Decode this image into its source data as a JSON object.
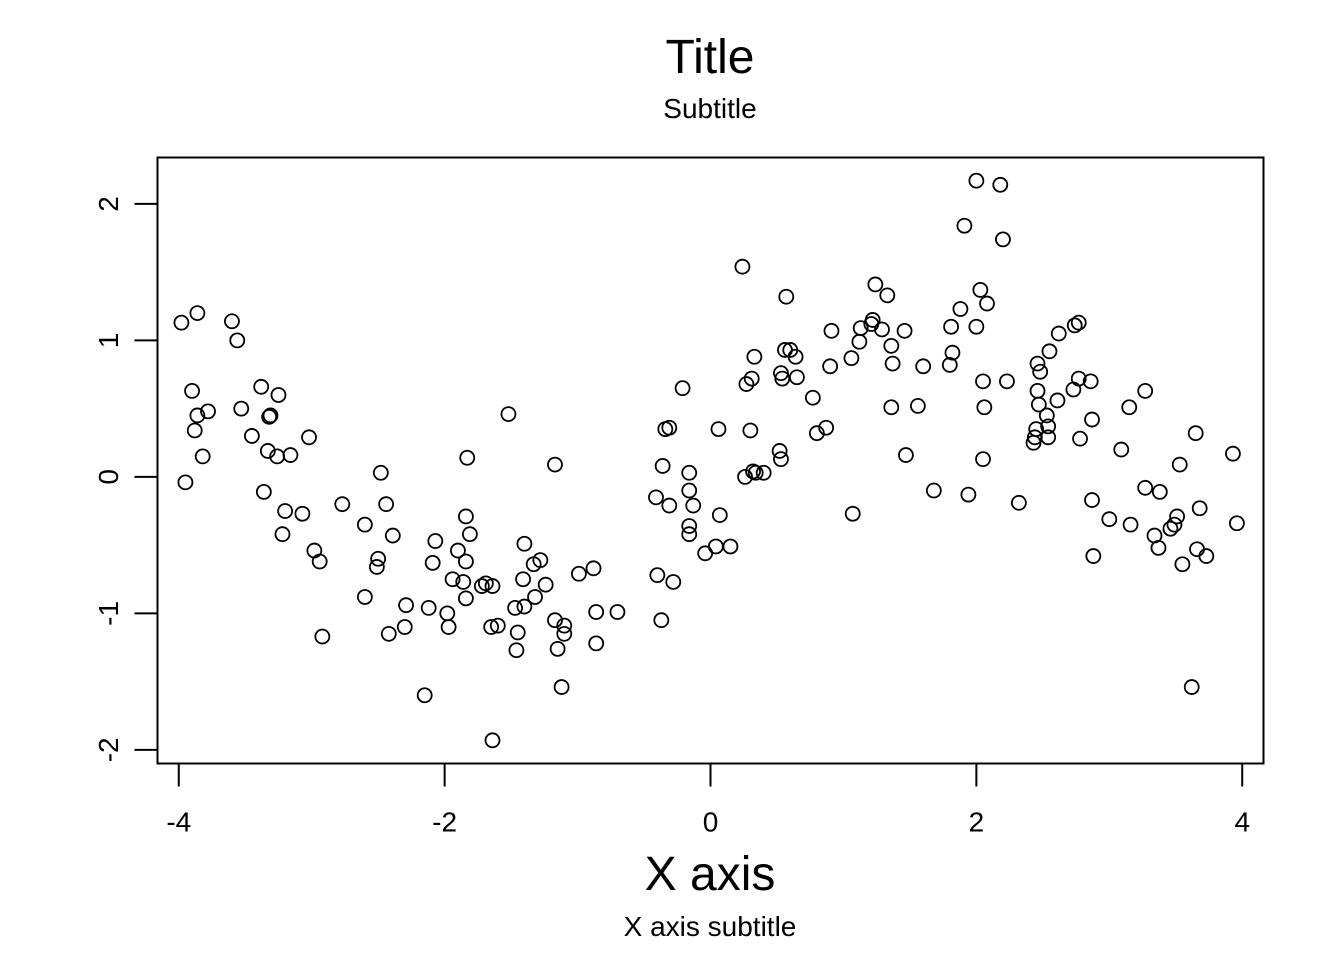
{
  "chart_data": {
    "type": "scatter",
    "title": "Title",
    "subtitle": "Subtitle",
    "xlabel": "X axis",
    "xlabel_subtitle": "X axis subtitle",
    "ylabel": "",
    "xlim": [
      -4.16,
      4.16
    ],
    "ylim": [
      -2.1,
      2.34
    ],
    "xticks": [
      -4,
      -2,
      0,
      2,
      4
    ],
    "yticks": [
      -2,
      -1,
      0,
      1,
      2
    ],
    "xtick_labels": [
      "-4",
      "-2",
      "0",
      "2",
      "4"
    ],
    "ytick_labels": [
      "-2",
      "-1",
      "0",
      "1",
      "2"
    ],
    "grid": false,
    "legend": "none",
    "marker": "open-circle",
    "colors": {
      "points": "#000000",
      "axes": "#000000",
      "background": "#ffffff"
    },
    "points": [
      [
        -3.98,
        1.13
      ],
      [
        -3.86,
        1.2
      ],
      [
        -3.6,
        1.14
      ],
      [
        -3.56,
        1.0
      ],
      [
        -3.9,
        0.63
      ],
      [
        -3.86,
        0.45
      ],
      [
        -3.78,
        0.48
      ],
      [
        -3.88,
        0.34
      ],
      [
        -3.82,
        0.15
      ],
      [
        -3.95,
        -0.04
      ],
      [
        -3.53,
        0.5
      ],
      [
        -3.45,
        0.3
      ],
      [
        -3.38,
        0.66
      ],
      [
        -3.32,
        0.44
      ],
      [
        -3.31,
        0.45
      ],
      [
        -3.25,
        0.6
      ],
      [
        -3.33,
        0.19
      ],
      [
        -3.26,
        0.15
      ],
      [
        -3.16,
        0.16
      ],
      [
        -3.36,
        -0.11
      ],
      [
        -3.2,
        -0.25
      ],
      [
        -3.07,
        -0.27
      ],
      [
        -3.22,
        -0.42
      ],
      [
        -3.02,
        0.29
      ],
      [
        -2.98,
        -0.54
      ],
      [
        -2.94,
        -0.62
      ],
      [
        -2.92,
        -1.17
      ],
      [
        -2.77,
        -0.2
      ],
      [
        -2.6,
        -0.35
      ],
      [
        -2.6,
        -0.88
      ],
      [
        -2.48,
        0.03
      ],
      [
        -2.44,
        -0.2
      ],
      [
        -2.5,
        -0.6
      ],
      [
        -2.51,
        -0.66
      ],
      [
        -2.39,
        -0.43
      ],
      [
        -2.42,
        -1.15
      ],
      [
        -2.3,
        -1.1
      ],
      [
        -2.29,
        -0.94
      ],
      [
        -2.15,
        -1.6
      ],
      [
        -2.12,
        -0.96
      ],
      [
        -2.09,
        -0.63
      ],
      [
        -2.07,
        -0.47
      ],
      [
        -1.98,
        -1.0
      ],
      [
        -1.97,
        -1.1
      ],
      [
        -1.94,
        -0.75
      ],
      [
        -1.9,
        -0.54
      ],
      [
        -1.86,
        -0.77
      ],
      [
        -1.83,
        0.14
      ],
      [
        -1.84,
        -0.29
      ],
      [
        -1.81,
        -0.42
      ],
      [
        -1.84,
        -0.62
      ],
      [
        -1.84,
        -0.89
      ],
      [
        -1.72,
        -0.8
      ],
      [
        -1.69,
        -0.78
      ],
      [
        -1.64,
        -0.8
      ],
      [
        -1.65,
        -1.1
      ],
      [
        -1.6,
        -1.09
      ],
      [
        -1.64,
        -1.93
      ],
      [
        -1.52,
        0.46
      ],
      [
        -1.47,
        -0.96
      ],
      [
        -1.45,
        -1.14
      ],
      [
        -1.46,
        -1.27
      ],
      [
        -1.41,
        -0.75
      ],
      [
        -1.4,
        -0.49
      ],
      [
        -1.4,
        -0.95
      ],
      [
        -1.33,
        -0.64
      ],
      [
        -1.32,
        -0.88
      ],
      [
        -1.28,
        -0.61
      ],
      [
        -1.24,
        -0.79
      ],
      [
        -1.17,
        -1.05
      ],
      [
        -1.15,
        -1.26
      ],
      [
        -1.12,
        -1.54
      ],
      [
        -1.1,
        -1.09
      ],
      [
        -1.1,
        -1.15
      ],
      [
        -1.17,
        0.09
      ],
      [
        -0.99,
        -0.71
      ],
      [
        -0.88,
        -0.67
      ],
      [
        -0.86,
        -0.99
      ],
      [
        -0.86,
        -1.22
      ],
      [
        -0.7,
        -0.99
      ],
      [
        -0.41,
        -0.15
      ],
      [
        -0.4,
        -0.72
      ],
      [
        -0.37,
        -1.05
      ],
      [
        -0.36,
        0.08
      ],
      [
        -0.34,
        0.35
      ],
      [
        -0.31,
        0.36
      ],
      [
        -0.31,
        -0.21
      ],
      [
        -0.28,
        -0.77
      ],
      [
        -0.21,
        0.65
      ],
      [
        -0.16,
        0.03
      ],
      [
        -0.16,
        -0.1
      ],
      [
        -0.16,
        -0.36
      ],
      [
        -0.16,
        -0.42
      ],
      [
        -0.13,
        -0.21
      ],
      [
        -0.04,
        -0.56
      ],
      [
        0.04,
        -0.51
      ],
      [
        0.06,
        0.35
      ],
      [
        0.07,
        -0.28
      ],
      [
        0.15,
        -0.51
      ],
      [
        0.24,
        1.54
      ],
      [
        0.26,
        0.0
      ],
      [
        0.27,
        0.68
      ],
      [
        0.3,
        0.34
      ],
      [
        0.31,
        0.72
      ],
      [
        0.32,
        0.04
      ],
      [
        0.33,
        0.88
      ],
      [
        0.34,
        0.03
      ],
      [
        0.4,
        0.03
      ],
      [
        0.52,
        0.19
      ],
      [
        0.53,
        0.13
      ],
      [
        0.53,
        0.76
      ],
      [
        0.54,
        0.72
      ],
      [
        0.56,
        0.93
      ],
      [
        0.57,
        1.32
      ],
      [
        0.6,
        0.93
      ],
      [
        0.64,
        0.88
      ],
      [
        0.65,
        0.73
      ],
      [
        0.77,
        0.58
      ],
      [
        0.8,
        0.32
      ],
      [
        0.87,
        0.36
      ],
      [
        0.9,
        0.81
      ],
      [
        0.91,
        1.07
      ],
      [
        1.06,
        0.87
      ],
      [
        1.07,
        -0.27
      ],
      [
        1.12,
        0.99
      ],
      [
        1.13,
        1.09
      ],
      [
        1.21,
        1.12
      ],
      [
        1.22,
        1.15
      ],
      [
        1.24,
        1.41
      ],
      [
        1.29,
        1.08
      ],
      [
        1.33,
        1.33
      ],
      [
        1.36,
        0.96
      ],
      [
        1.37,
        0.83
      ],
      [
        1.36,
        0.51
      ],
      [
        1.46,
        1.07
      ],
      [
        1.47,
        0.16
      ],
      [
        1.56,
        0.52
      ],
      [
        1.6,
        0.81
      ],
      [
        1.68,
        -0.1
      ],
      [
        1.8,
        0.82
      ],
      [
        1.81,
        1.1
      ],
      [
        1.82,
        0.91
      ],
      [
        1.88,
        1.23
      ],
      [
        1.91,
        1.84
      ],
      [
        1.94,
        -0.13
      ],
      [
        2.0,
        2.17
      ],
      [
        2.0,
        1.1
      ],
      [
        2.03,
        1.37
      ],
      [
        2.05,
        0.7
      ],
      [
        2.06,
        0.51
      ],
      [
        2.05,
        0.13
      ],
      [
        2.08,
        1.27
      ],
      [
        2.18,
        2.14
      ],
      [
        2.2,
        1.74
      ],
      [
        2.23,
        0.7
      ],
      [
        2.32,
        -0.19
      ],
      [
        2.43,
        0.25
      ],
      [
        2.44,
        0.29
      ],
      [
        2.45,
        0.35
      ],
      [
        2.46,
        0.83
      ],
      [
        2.46,
        0.63
      ],
      [
        2.47,
        0.53
      ],
      [
        2.48,
        0.77
      ],
      [
        2.53,
        0.45
      ],
      [
        2.54,
        0.37
      ],
      [
        2.54,
        0.29
      ],
      [
        2.55,
        0.92
      ],
      [
        2.61,
        0.56
      ],
      [
        2.62,
        1.05
      ],
      [
        2.73,
        0.64
      ],
      [
        2.74,
        1.11
      ],
      [
        2.77,
        1.13
      ],
      [
        2.77,
        0.72
      ],
      [
        2.78,
        0.28
      ],
      [
        2.86,
        0.7
      ],
      [
        2.87,
        0.42
      ],
      [
        2.87,
        -0.17
      ],
      [
        2.88,
        -0.58
      ],
      [
        3.0,
        -0.31
      ],
      [
        3.09,
        0.2
      ],
      [
        3.15,
        0.51
      ],
      [
        3.16,
        -0.35
      ],
      [
        3.27,
        0.63
      ],
      [
        3.27,
        -0.08
      ],
      [
        3.34,
        -0.43
      ],
      [
        3.37,
        -0.52
      ],
      [
        3.38,
        -0.11
      ],
      [
        3.46,
        -0.38
      ],
      [
        3.49,
        -0.35
      ],
      [
        3.51,
        -0.29
      ],
      [
        3.53,
        0.09
      ],
      [
        3.55,
        -0.64
      ],
      [
        3.62,
        -1.54
      ],
      [
        3.65,
        0.32
      ],
      [
        3.66,
        -0.53
      ],
      [
        3.68,
        -0.23
      ],
      [
        3.73,
        -0.58
      ],
      [
        3.93,
        0.17
      ],
      [
        3.96,
        -0.34
      ]
    ]
  }
}
